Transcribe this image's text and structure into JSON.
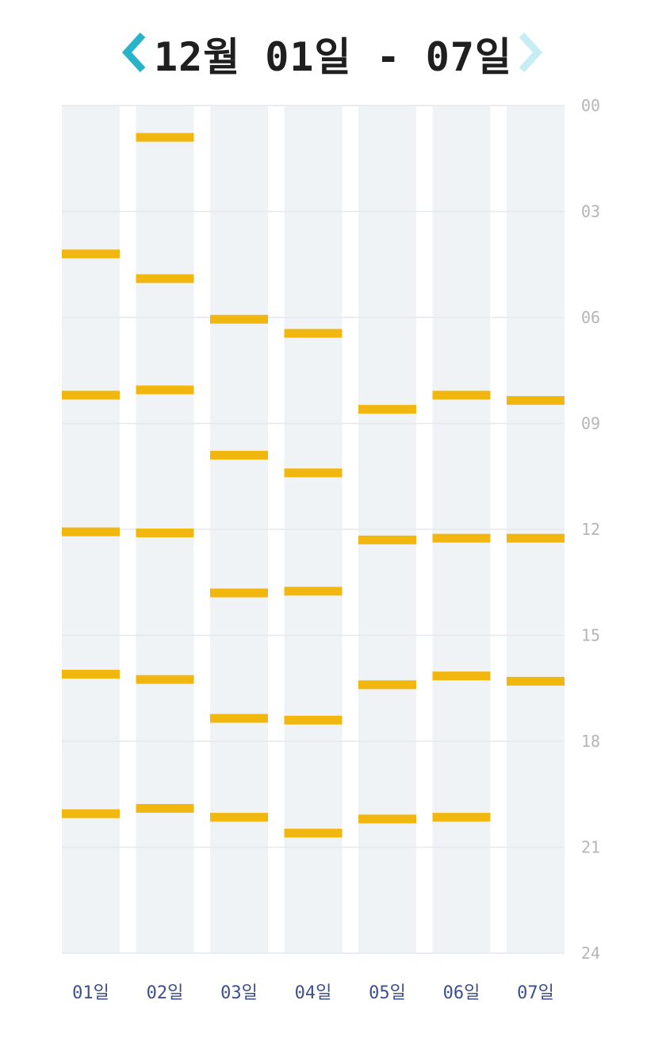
{
  "header": {
    "title": "12월 01일 - 07일",
    "prev_icon": "chevron-left-icon",
    "next_icon": "chevron-right-icon",
    "prev_color": "#27b3c8",
    "next_color": "#c4eef4"
  },
  "colors": {
    "column_bg": "#eff3f6",
    "gridline": "#e4e9ee",
    "bar": "#f1b70e"
  },
  "chart_data": {
    "type": "timeline",
    "categories": [
      "01일",
      "02일",
      "03일",
      "04일",
      "05일",
      "06일",
      "07일"
    ],
    "y_ticks": [
      "00",
      "03",
      "06",
      "09",
      "12",
      "15",
      "18",
      "21",
      "24"
    ],
    "ylim": [
      0,
      24
    ],
    "grid": true,
    "events_hours": [
      [
        4.2,
        8.2,
        12.07,
        16.1,
        20.05
      ],
      [
        0.9,
        4.9,
        8.05,
        12.1,
        16.25,
        19.9
      ],
      [
        6.05,
        9.9,
        13.8,
        17.35,
        20.15
      ],
      [
        6.45,
        10.4,
        13.75,
        17.4,
        20.6
      ],
      [
        8.6,
        12.3,
        16.4,
        20.2
      ],
      [
        8.2,
        12.25,
        16.15,
        20.15
      ],
      [
        8.35,
        12.25,
        16.3
      ]
    ]
  }
}
